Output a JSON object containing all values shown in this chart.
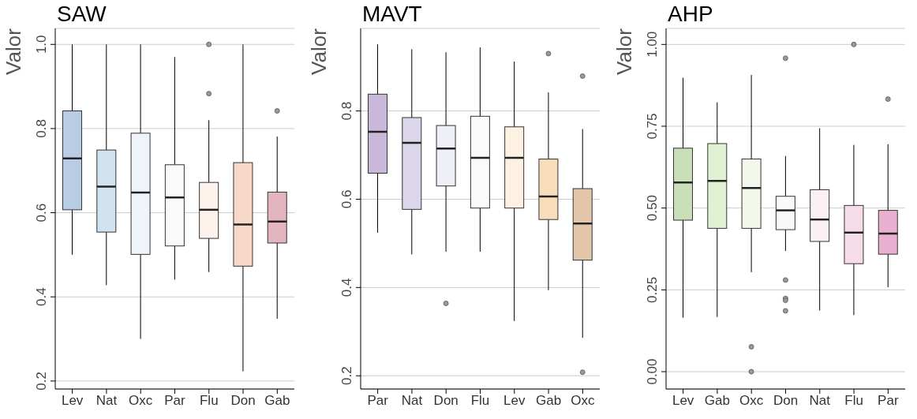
{
  "chart_data": [
    {
      "type": "box",
      "title": "SAW",
      "ylabel": "Valor",
      "categories": [
        "Lev",
        "Nat",
        "Oxc",
        "Par",
        "Flu",
        "Don",
        "Gab"
      ],
      "ylim": [
        0.181,
        1.038
      ],
      "yticks": [
        0.2,
        0.4,
        0.6,
        0.8,
        {
          "value": 1,
          "label": "1.0"
        }
      ],
      "grid": "y",
      "colors": [
        "#b8cce4",
        "#d2e3f0",
        "#eef4fa",
        "#fafafa",
        "#fdf2ec",
        "#f8d9c9",
        "#e4b5be"
      ],
      "boxes": [
        {
          "low": 0.5,
          "q1": 0.607,
          "median": 0.729,
          "q3": 0.842,
          "high": 1.0
        },
        {
          "low": 0.428,
          "q1": 0.554,
          "median": 0.662,
          "q3": 0.749,
          "high": 1.0
        },
        {
          "low": 0.3,
          "q1": 0.501,
          "median": 0.648,
          "q3": 0.789,
          "high": 1.0
        },
        {
          "low": 0.441,
          "q1": 0.521,
          "median": 0.636,
          "q3": 0.714,
          "high": 0.97
        },
        {
          "low": 0.459,
          "q1": 0.539,
          "median": 0.607,
          "q3": 0.672,
          "high": 0.82,
          "outliers": [
            1.0,
            0.883
          ]
        },
        {
          "low": 0.223,
          "q1": 0.473,
          "median": 0.572,
          "q3": 0.719,
          "high": 1.0
        },
        {
          "low": 0.348,
          "q1": 0.528,
          "median": 0.579,
          "q3": 0.649,
          "high": 0.781,
          "outliers": [
            0.842
          ]
        }
      ]
    },
    {
      "type": "box",
      "title": "MAVT",
      "ylabel": "Valor",
      "categories": [
        "Par",
        "Nat",
        "Don",
        "Flu",
        "Lev",
        "Gab",
        "Oxc"
      ],
      "ylim": [
        0.17,
        0.987
      ],
      "yticks": [
        0.2,
        0.4,
        0.6,
        0.8
      ],
      "grid": "y",
      "colors": [
        "#c9b8d9",
        "#dcd6ea",
        "#eeeff7",
        "#fafafa",
        "#fdf1e2",
        "#f7ddb9",
        "#e4c7ab"
      ],
      "boxes": [
        {
          "low": 0.524,
          "q1": 0.659,
          "median": 0.753,
          "q3": 0.838,
          "high": 0.951
        },
        {
          "low": 0.475,
          "q1": 0.577,
          "median": 0.728,
          "q3": 0.785,
          "high": 0.94
        },
        {
          "low": 0.481,
          "q1": 0.63,
          "median": 0.715,
          "q3": 0.767,
          "high": 0.933,
          "outliers": [
            0.364
          ]
        },
        {
          "low": 0.481,
          "q1": 0.58,
          "median": 0.694,
          "q3": 0.788,
          "high": 0.944
        },
        {
          "low": 0.324,
          "q1": 0.58,
          "median": 0.694,
          "q3": 0.764,
          "high": 0.912
        },
        {
          "low": 0.394,
          "q1": 0.554,
          "median": 0.606,
          "q3": 0.691,
          "high": 0.842,
          "outliers": [
            0.93
          ]
        },
        {
          "low": 0.286,
          "q1": 0.462,
          "median": 0.545,
          "q3": 0.624,
          "high": 0.759,
          "outliers": [
            0.879,
            0.208
          ]
        }
      ]
    },
    {
      "type": "box",
      "title": "AHP",
      "ylabel": "Valor",
      "categories": [
        "Lev",
        "Gab",
        "Oxc",
        "Don",
        "Nat",
        "Flu",
        "Par"
      ],
      "ylim": [
        -0.053,
        1.049
      ],
      "yticks": [
        {
          "value": 0,
          "label": "0.00"
        },
        {
          "value": 0.25,
          "label": "0.25"
        },
        {
          "value": 0.5,
          "label": "0.50"
        },
        {
          "value": 0.75,
          "label": "0.75"
        },
        {
          "value": 1,
          "label": "1.00"
        }
      ],
      "grid": "y",
      "colors": [
        "#c8dfb9",
        "#e0f0d2",
        "#f3f8ec",
        "#f9f9f9",
        "#fbf0f6",
        "#f6dbe9",
        "#e9b0d2"
      ],
      "boxes": [
        {
          "low": 0.165,
          "q1": 0.463,
          "median": 0.578,
          "q3": 0.683,
          "high": 0.898
        },
        {
          "low": 0.167,
          "q1": 0.438,
          "median": 0.583,
          "q3": 0.697,
          "high": 0.823
        },
        {
          "low": 0.304,
          "q1": 0.438,
          "median": 0.561,
          "q3": 0.65,
          "high": 0.907,
          "outliers": [
            0.076,
            0.0
          ]
        },
        {
          "low": 0.369,
          "q1": 0.434,
          "median": 0.493,
          "q3": 0.536,
          "high": 0.659,
          "outliers": [
            0.958,
            0.28,
            0.224,
            0.218,
            0.186
          ]
        },
        {
          "low": 0.187,
          "q1": 0.398,
          "median": 0.465,
          "q3": 0.556,
          "high": 0.744
        },
        {
          "low": 0.173,
          "q1": 0.33,
          "median": 0.425,
          "q3": 0.508,
          "high": 0.693,
          "outliers": [
            1.0
          ]
        },
        {
          "low": 0.258,
          "q1": 0.359,
          "median": 0.422,
          "q3": 0.493,
          "high": 0.695,
          "outliers": [
            0.833
          ]
        }
      ]
    }
  ]
}
